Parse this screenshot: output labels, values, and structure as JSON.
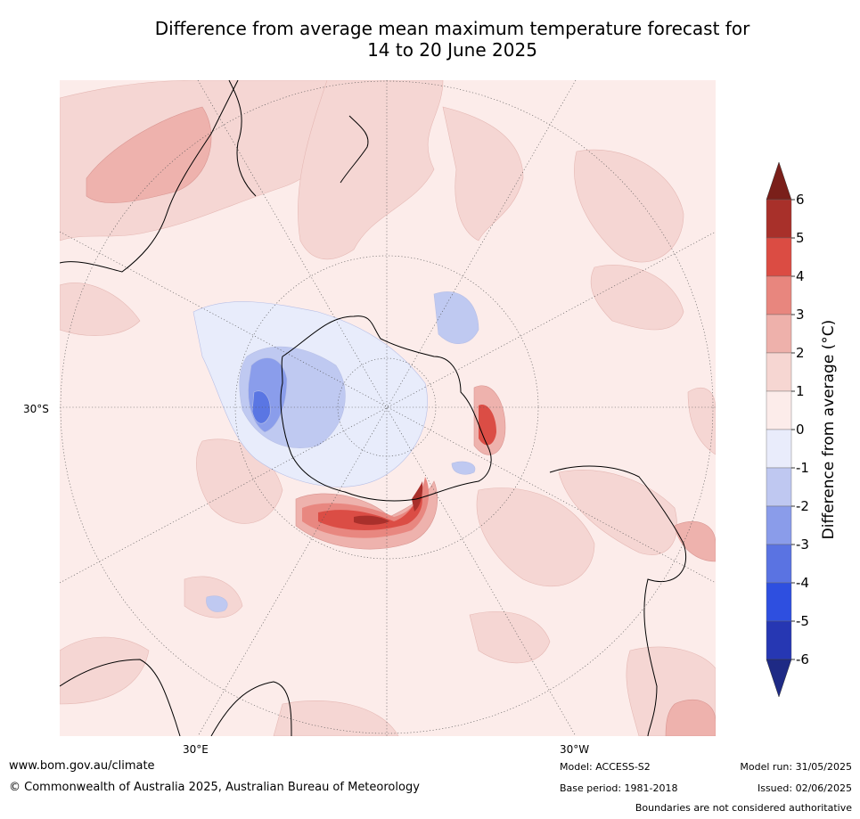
{
  "title": {
    "line1": "Difference from average mean maximum temperature forecast for",
    "line2": "14 to 20 June 2025"
  },
  "map": {
    "projection": "south polar stereographic",
    "lat_label": "30°S",
    "lon_labels": [
      "30°E",
      "30°W"
    ],
    "colors": {
      "ocean_base": "#fcecea",
      "warm_1_2": "#f5d6d3",
      "warm_2_3": "#eeb2ad",
      "warm_3_4": "#e88780",
      "warm_4_5": "#db4d45",
      "warm_5_6": "#a9302b",
      "cool_0_1": "#e8ecfb",
      "cool_1_2": "#bfc9f1",
      "cool_2_3": "#8a9deb",
      "cool_3_4": "#5a76e3"
    }
  },
  "colorbar": {
    "label": "Difference from average (°C)",
    "tick_labels": [
      "6",
      "5",
      "4",
      "3",
      "2",
      "1",
      "0",
      "-1",
      "-2",
      "-3",
      "-4",
      "-5",
      "-6"
    ],
    "bins": [
      {
        "range": "6 to 5",
        "color": "#a8302a"
      },
      {
        "range": "5 to 4",
        "color": "#db4c43"
      },
      {
        "range": "4 to 3",
        "color": "#e8867e"
      },
      {
        "range": "3 to 2",
        "color": "#eeb1ab"
      },
      {
        "range": "2 to 1",
        "color": "#f6d6d2"
      },
      {
        "range": "1 to 0",
        "color": "#fcecea"
      },
      {
        "range": "0 to -1",
        "color": "#e9ecfb"
      },
      {
        "range": "-1 to -2",
        "color": "#bfc8f1"
      },
      {
        "range": "-2 to -3",
        "color": "#8a9cea"
      },
      {
        "range": "-3 to -4",
        "color": "#5a73e2"
      },
      {
        "range": "-4 to -5",
        "color": "#2e4fe0"
      },
      {
        "range": "-5 to -6",
        "color": "#2637b3"
      }
    ],
    "over_color": "#7a1f1a",
    "under_color": "#1e2a85"
  },
  "footer": {
    "website": "www.bom.gov.au/climate",
    "copyright": "© Commonwealth of Australia 2025, Australian Bureau of Meteorology",
    "model": "Model: ACCESS-S2",
    "base_period": "Base period: 1981-2018",
    "model_run": "Model run: 31/05/2025",
    "issued": "Issued: 02/06/2025",
    "disclaimer": "Boundaries are not considered authoritative"
  }
}
